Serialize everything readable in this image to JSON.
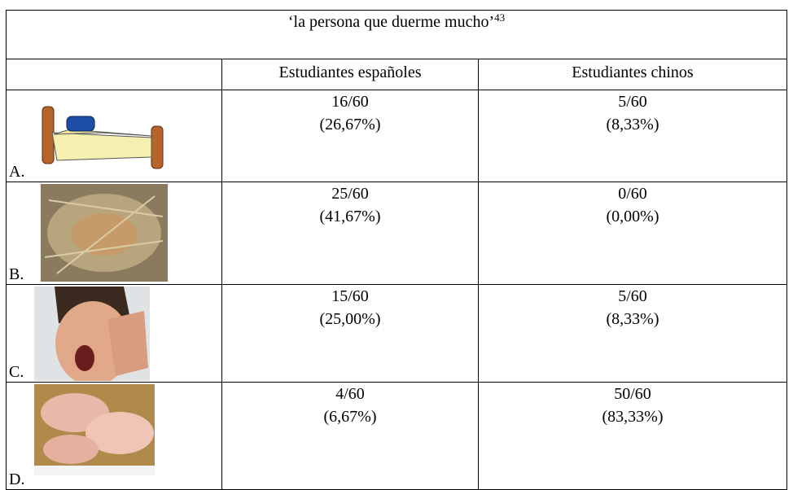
{
  "caption": {
    "text": "‘la persona que duerme mucho’",
    "footnote": "43"
  },
  "columns": [
    "Estudiantes españoles",
    "Estudiantes chinos"
  ],
  "rows": [
    {
      "option": "A.",
      "spanish": {
        "count": "16/60",
        "percent": "(26,67%)"
      },
      "chinese": {
        "count": "5/60",
        "percent": "(8,33%)"
      }
    },
    {
      "option": "B.",
      "spanish": {
        "count": "25/60",
        "percent": "(41,67%)"
      },
      "chinese": {
        "count": "0/60",
        "percent": "(0,00%)"
      }
    },
    {
      "option": "C.",
      "spanish": {
        "count": "15/60",
        "percent": "(25,00%)"
      },
      "chinese": {
        "count": "5/60",
        "percent": "(8,33%)"
      }
    },
    {
      "option": "D.",
      "spanish": {
        "count": "4/60",
        "percent": "(6,67%)"
      },
      "chinese": {
        "count": "50/60",
        "percent": "(83,33%)"
      }
    }
  ]
}
